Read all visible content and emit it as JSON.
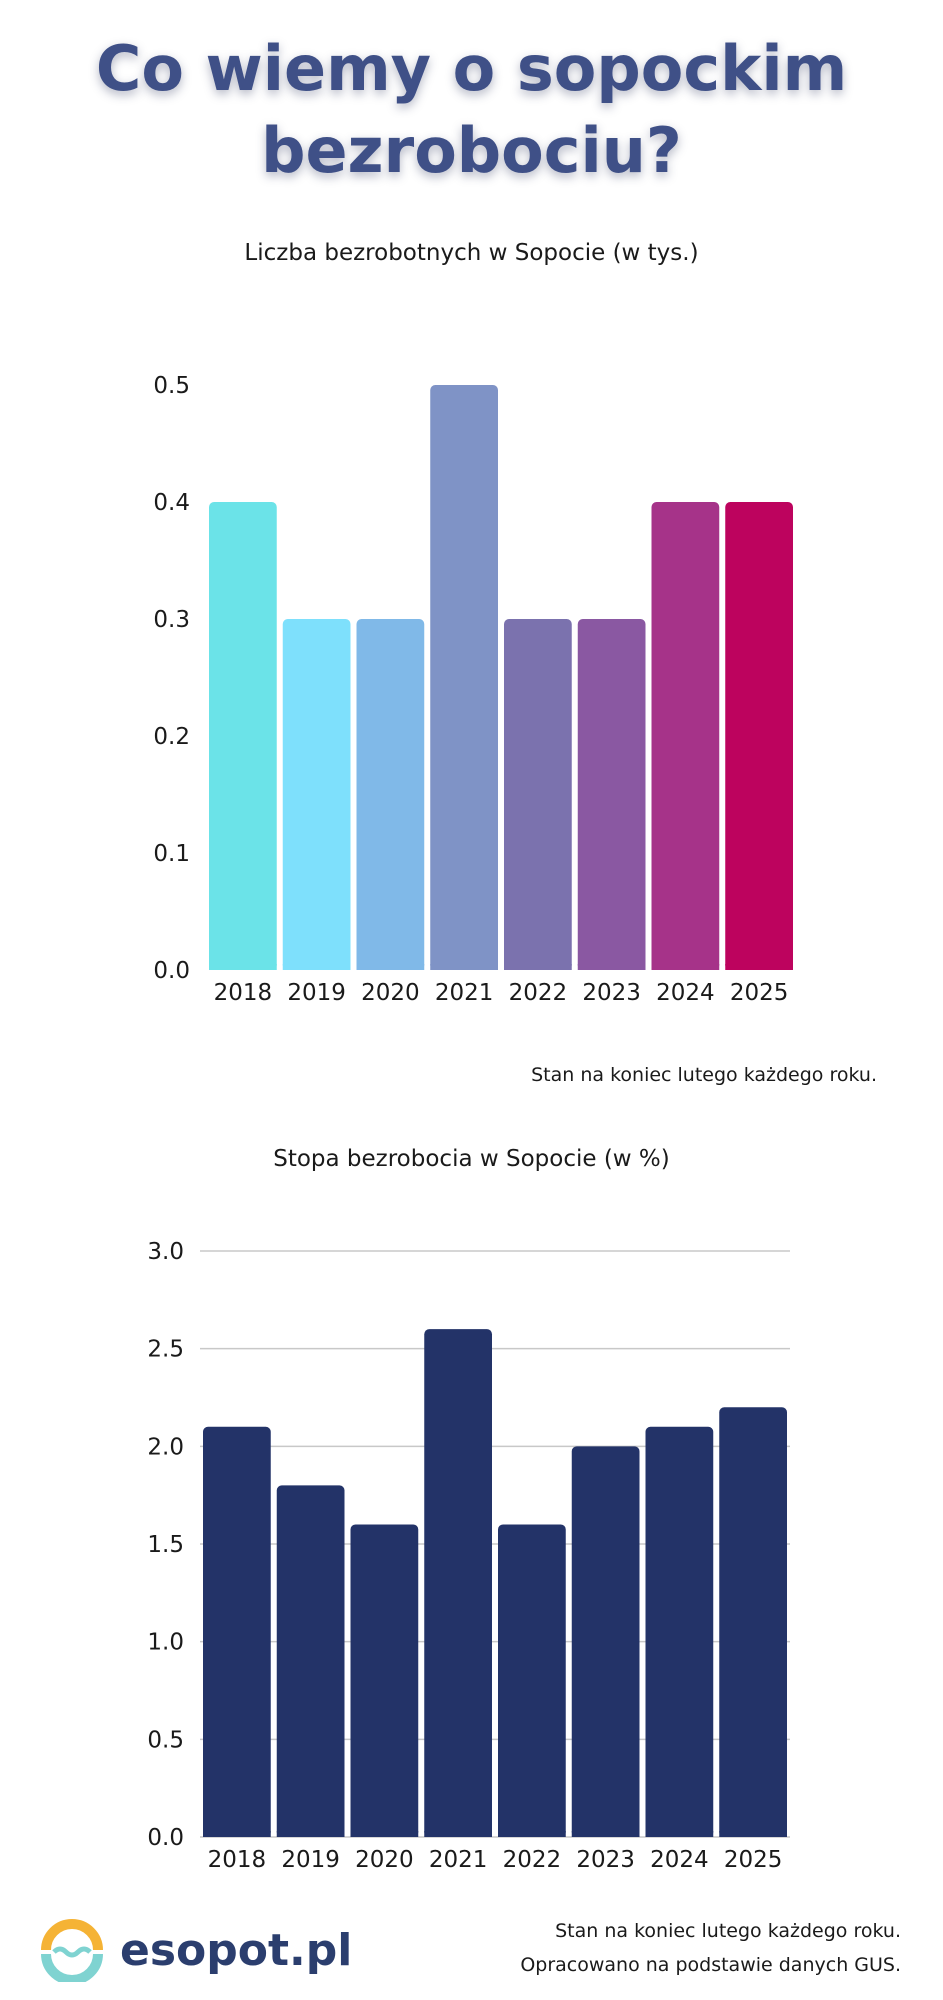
{
  "page": {
    "title_line1": "Co wiemy o sopockim",
    "title_line2": "bezrobociu?",
    "note1": "Stan na koniec lutego każdego roku.",
    "note2": "Stan na koniec lutego każdego roku.",
    "note3": "Opracowano na podstawie danych GUS.",
    "brand": "esopot.pl",
    "colors": {
      "title": "#3f5087",
      "brand": "#2b3e6e",
      "logo_orange": "#f5b335",
      "logo_teal": "#7fd3d1"
    }
  },
  "chart_data": [
    {
      "type": "bar",
      "title": "Liczba bezrobotnych w Sopocie (w tys.)",
      "categories": [
        "2018",
        "2019",
        "2020",
        "2021",
        "2022",
        "2023",
        "2024",
        "2025"
      ],
      "values": [
        0.4,
        0.3,
        0.3,
        0.5,
        0.3,
        0.3,
        0.4,
        0.4
      ],
      "ylim": [
        0,
        0.5
      ],
      "yticks": [
        "0.0",
        "0.1",
        "0.2",
        "0.3",
        "0.4",
        "0.5"
      ],
      "grid": false,
      "bar_colors": [
        "#6be3e8",
        "#7ee0fc",
        "#80b9e8",
        "#7f93c6",
        "#7b72ae",
        "#8a58a2",
        "#a63389",
        "#bd035e"
      ]
    },
    {
      "type": "bar",
      "title": "Stopa bezrobocia w Sopocie (w %)",
      "categories": [
        "2018",
        "2019",
        "2020",
        "2021",
        "2022",
        "2023",
        "2024",
        "2025"
      ],
      "values": [
        2.1,
        1.8,
        1.6,
        2.6,
        1.6,
        2.0,
        2.1,
        2.2
      ],
      "ylim": [
        0,
        3.0
      ],
      "yticks": [
        "0.0",
        "0.5",
        "1.0",
        "1.5",
        "2.0",
        "2.5",
        "3.0"
      ],
      "grid": true,
      "bar_colors": [
        "#233368"
      ]
    }
  ]
}
